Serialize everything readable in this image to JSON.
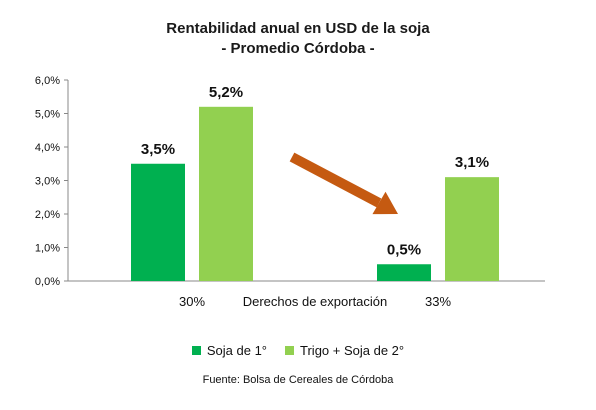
{
  "chart_data": {
    "type": "bar",
    "title": "Rentabilidad anual en USD de la soja",
    "subtitle": "- Promedio Córdoba -",
    "xlabel": "Derechos de exportación",
    "categories": [
      "30%",
      "33%"
    ],
    "series": [
      {
        "name": "Soja de 1°",
        "color": "#00b050",
        "values": [
          3.5,
          0.5
        ],
        "labels": [
          "3,5%",
          "0,5%"
        ]
      },
      {
        "name": "Trigo + Soja de 2°",
        "color": "#92d050",
        "values": [
          5.2,
          3.1
        ],
        "labels": [
          "5,2%",
          "3,1%"
        ]
      }
    ],
    "ylim": [
      0,
      6
    ],
    "yticks": [
      "0,0%",
      "1,0%",
      "2,0%",
      "3,0%",
      "4,0%",
      "5,0%",
      "6,0%"
    ],
    "grid": false,
    "legend": "bottom",
    "arrow_color": "#c55a11",
    "source": "Fuente: Bolsa de Cereales de Córdoba"
  }
}
